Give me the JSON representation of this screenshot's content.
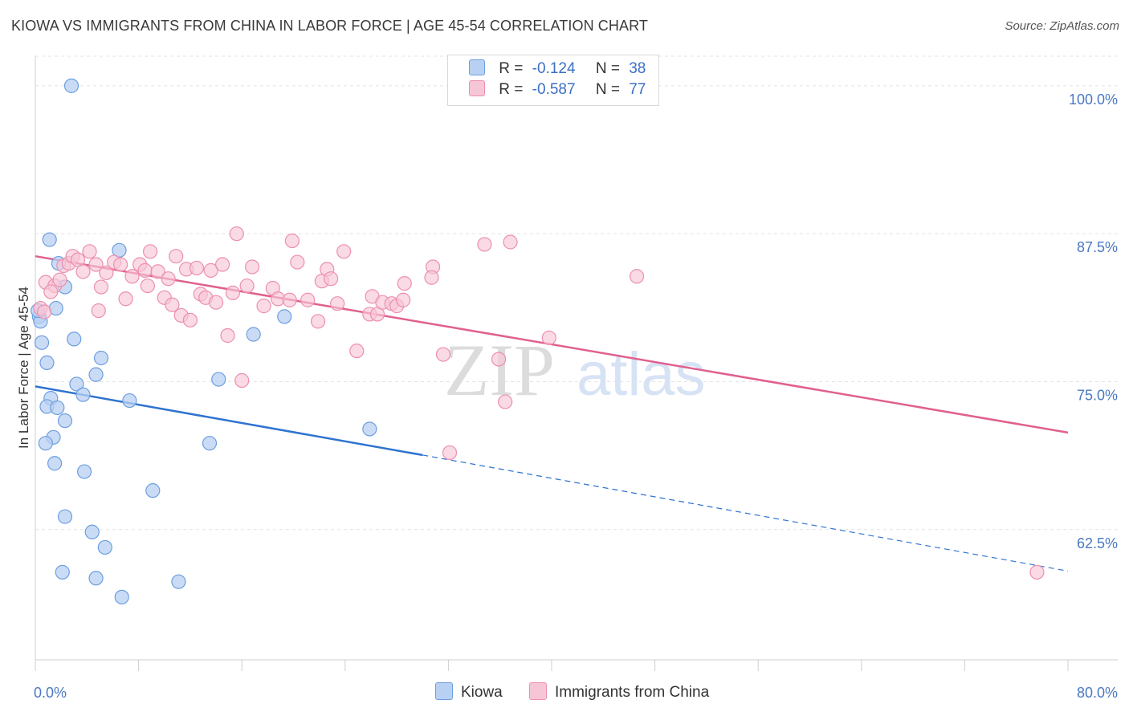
{
  "header": {
    "title": "KIOWA VS IMMIGRANTS FROM CHINA IN LABOR FORCE | AGE 45-54 CORRELATION CHART",
    "source": "Source: ZipAtlas.com"
  },
  "legend": {
    "rows": [
      {
        "r_label": "R =",
        "r_value": "-0.124",
        "n_label": "N =",
        "n_value": "38"
      },
      {
        "r_label": "R =",
        "r_value": "-0.587",
        "n_label": "N =",
        "n_value": "77"
      }
    ]
  },
  "colors": {
    "kiowa_fill": "#b8d0f2",
    "kiowa_stroke": "#6d9ee0",
    "kiowa_line": "#2f73d0",
    "china_fill": "#f7c6d6",
    "china_stroke": "#ec8fb0",
    "china_line": "#e0608f"
  },
  "chart_data": {
    "type": "scatter",
    "title": "KIOWA VS IMMIGRANTS FROM CHINA IN LABOR FORCE | AGE 45-54 CORRELATION CHART",
    "xlabel": "",
    "ylabel": "In Labor Force | Age 45-54",
    "xlim": [
      0,
      80
    ],
    "ylim": [
      51.5,
      102.5
    ],
    "x_tick_labels": [
      "0.0%",
      "80.0%"
    ],
    "y_ticks": [
      62.5,
      75.0,
      87.5,
      100.0
    ],
    "y_tick_labels": [
      "62.5%",
      "75.0%",
      "87.5%",
      "100.0%"
    ],
    "watermark": {
      "zip": "ZIP",
      "atlas": "atlas"
    },
    "series": [
      {
        "name": "Kiowa",
        "points": [
          [
            2.8,
            100.0
          ],
          [
            1.1,
            87.0
          ],
          [
            1.8,
            85.0
          ],
          [
            2.3,
            83.0
          ],
          [
            6.5,
            86.1
          ],
          [
            1.6,
            81.2
          ],
          [
            0.3,
            80.5
          ],
          [
            0.4,
            80.1
          ],
          [
            0.5,
            78.3
          ],
          [
            3.0,
            78.6
          ],
          [
            19.3,
            80.5
          ],
          [
            16.9,
            79.0
          ],
          [
            0.9,
            76.6
          ],
          [
            5.1,
            77.0
          ],
          [
            4.7,
            75.6
          ],
          [
            14.2,
            75.2
          ],
          [
            3.2,
            74.8
          ],
          [
            3.7,
            73.9
          ],
          [
            1.2,
            73.6
          ],
          [
            7.3,
            73.4
          ],
          [
            0.9,
            72.9
          ],
          [
            1.7,
            72.8
          ],
          [
            2.3,
            71.7
          ],
          [
            25.9,
            71.0
          ],
          [
            1.4,
            70.3
          ],
          [
            0.8,
            69.8
          ],
          [
            13.5,
            69.8
          ],
          [
            1.5,
            68.1
          ],
          [
            3.8,
            67.4
          ],
          [
            9.1,
            65.8
          ],
          [
            2.3,
            63.6
          ],
          [
            4.4,
            62.3
          ],
          [
            5.4,
            61.0
          ],
          [
            2.1,
            58.9
          ],
          [
            4.7,
            58.4
          ],
          [
            11.1,
            58.1
          ],
          [
            6.7,
            56.8
          ],
          [
            0.2,
            81.0
          ]
        ],
        "trend": {
          "x_start": 0,
          "y_start": 74.6,
          "x_solid_end": 30,
          "y_solid_end": 68.8,
          "x_end": 80,
          "y_end": 59.0
        }
      },
      {
        "name": "Immigrants from China",
        "points": [
          [
            0.4,
            81.2
          ],
          [
            0.8,
            83.4
          ],
          [
            1.5,
            83.1
          ],
          [
            1.9,
            83.6
          ],
          [
            2.2,
            84.8
          ],
          [
            2.6,
            85.0
          ],
          [
            2.9,
            85.6
          ],
          [
            3.3,
            85.3
          ],
          [
            3.7,
            84.3
          ],
          [
            4.2,
            86.0
          ],
          [
            4.7,
            84.9
          ],
          [
            5.1,
            83.0
          ],
          [
            5.5,
            84.2
          ],
          [
            6.1,
            85.1
          ],
          [
            6.6,
            84.9
          ],
          [
            7.0,
            82.0
          ],
          [
            7.5,
            83.9
          ],
          [
            8.1,
            84.9
          ],
          [
            8.5,
            84.4
          ],
          [
            8.7,
            83.1
          ],
          [
            8.9,
            86.0
          ],
          [
            9.5,
            84.3
          ],
          [
            10.0,
            82.1
          ],
          [
            10.3,
            83.7
          ],
          [
            10.6,
            81.5
          ],
          [
            10.9,
            85.6
          ],
          [
            11.3,
            80.6
          ],
          [
            11.7,
            84.5
          ],
          [
            12.0,
            80.2
          ],
          [
            12.5,
            84.6
          ],
          [
            12.8,
            82.4
          ],
          [
            13.2,
            82.1
          ],
          [
            13.6,
            84.4
          ],
          [
            14.0,
            81.7
          ],
          [
            14.5,
            84.9
          ],
          [
            14.9,
            78.9
          ],
          [
            15.3,
            82.5
          ],
          [
            15.6,
            87.5
          ],
          [
            16.0,
            75.1
          ],
          [
            16.4,
            83.1
          ],
          [
            16.8,
            84.7
          ],
          [
            17.7,
            81.4
          ],
          [
            18.4,
            82.9
          ],
          [
            18.8,
            82.0
          ],
          [
            19.7,
            81.9
          ],
          [
            19.9,
            86.9
          ],
          [
            20.3,
            85.1
          ],
          [
            21.1,
            81.9
          ],
          [
            21.9,
            80.1
          ],
          [
            22.2,
            83.5
          ],
          [
            22.6,
            84.5
          ],
          [
            22.9,
            83.7
          ],
          [
            23.4,
            81.6
          ],
          [
            23.9,
            86.0
          ],
          [
            24.9,
            77.6
          ],
          [
            25.9,
            80.7
          ],
          [
            26.1,
            82.2
          ],
          [
            26.5,
            80.7
          ],
          [
            26.9,
            81.7
          ],
          [
            27.6,
            81.6
          ],
          [
            28.0,
            81.4
          ],
          [
            28.5,
            81.9
          ],
          [
            28.6,
            83.3
          ],
          [
            30.8,
            84.7
          ],
          [
            30.7,
            83.8
          ],
          [
            31.6,
            77.3
          ],
          [
            32.1,
            69.0
          ],
          [
            34.8,
            86.6
          ],
          [
            35.9,
            76.9
          ],
          [
            36.4,
            73.3
          ],
          [
            36.8,
            86.8
          ],
          [
            39.8,
            78.7
          ],
          [
            46.6,
            83.9
          ],
          [
            77.6,
            58.9
          ],
          [
            0.7,
            80.9
          ],
          [
            1.2,
            82.6
          ],
          [
            4.9,
            81.0
          ]
        ],
        "trend": {
          "x_start": 0,
          "y_start": 85.6,
          "x_end": 80,
          "y_end": 70.7
        }
      }
    ]
  },
  "bottom_legend": {
    "items": [
      {
        "label": "Kiowa"
      },
      {
        "label": "Immigrants from China"
      }
    ]
  }
}
